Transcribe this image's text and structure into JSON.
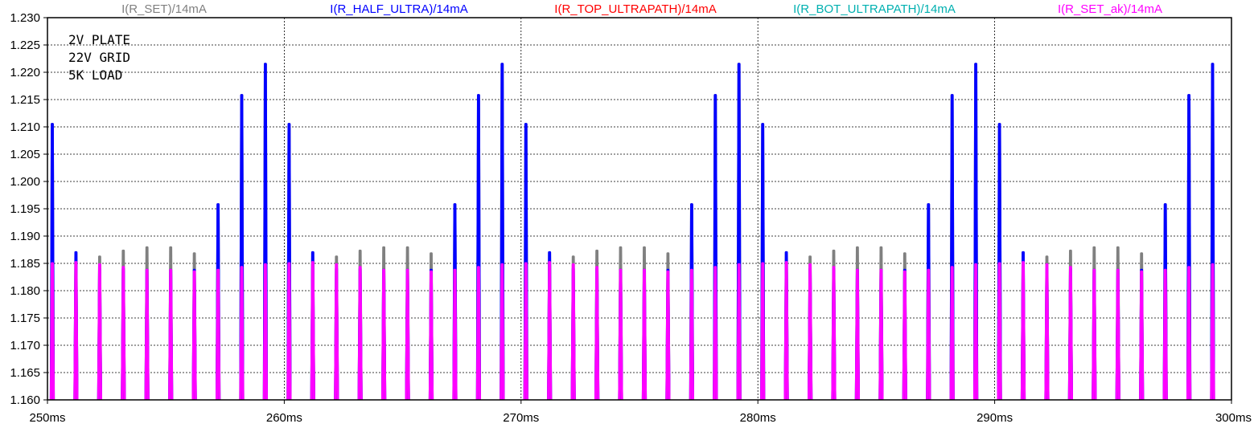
{
  "chart_data": {
    "type": "line",
    "title": "",
    "xlabel": "",
    "ylabel": "",
    "xlim": [
      250,
      300
    ],
    "ylim": [
      1.16,
      1.23
    ],
    "x_unit": "ms",
    "x_ticks": [
      "250ms",
      "260ms",
      "270ms",
      "280ms",
      "290ms",
      "300ms"
    ],
    "y_ticks": [
      "1.160",
      "1.165",
      "1.170",
      "1.175",
      "1.180",
      "1.185",
      "1.190",
      "1.195",
      "1.200",
      "1.205",
      "1.210",
      "1.215",
      "1.220",
      "1.225",
      "1.230"
    ],
    "grid": true,
    "legend_placement": "top",
    "annotations": [
      "2V PLATE",
      "22V GRID",
      "5K LOAD"
    ],
    "period_ms": 10,
    "cycle_starts_ms": [
      250,
      260,
      270,
      280,
      290
    ],
    "pulse_offsets_ms": [
      0.2,
      1.2,
      2.2,
      3.2,
      4.2,
      5.2,
      6.2,
      7.2,
      8.2,
      9.2
    ],
    "series": [
      {
        "name": "I(R_SET)/14mA",
        "color": "#808080",
        "baseline": 1.16,
        "peaks": [
          1.2105,
          1.187,
          1.1862,
          1.1873,
          1.1879,
          1.1879,
          1.1868,
          1.1958,
          1.2158,
          1.2215
        ]
      },
      {
        "name": "I(R_HALF_ULTRA)/14mA",
        "color": "#0000ff",
        "baseline": 1.16,
        "peaks": [
          1.2105,
          1.187,
          1.184,
          1.184,
          1.1838,
          1.1838,
          1.1838,
          1.1958,
          1.2158,
          1.2215
        ]
      },
      {
        "name": "I(R_TOP_ULTRAPATH)/14mA",
        "color": "#ff0000",
        "baseline": 1.16,
        "peaks": []
      },
      {
        "name": "I(R_BOT_ULTRAPATH)/14mA",
        "color": "#00b0b0",
        "baseline": 1.16,
        "peaks": []
      },
      {
        "name": "I(R_SET_ak)/14mA",
        "color": "#ff00ff",
        "baseline": 1.16,
        "peaks": [
          1.185,
          1.1852,
          1.1848,
          1.1843,
          1.1838,
          1.1838,
          1.1835,
          1.1838,
          1.1843,
          1.1848
        ]
      }
    ]
  }
}
